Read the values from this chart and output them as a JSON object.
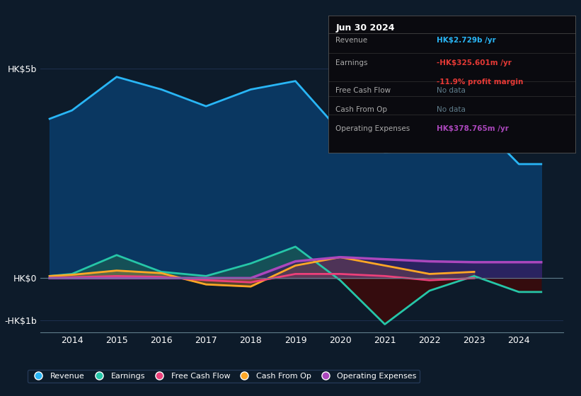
{
  "bg_color": "#0d1b2a",
  "plot_bg_color": "#0d1b2a",
  "grid_color": "#1e3050",
  "years": [
    2013.5,
    2014,
    2015,
    2016,
    2017,
    2018,
    2019,
    2020,
    2021,
    2022,
    2023,
    2024,
    2024.5
  ],
  "revenue": [
    3.8,
    4.0,
    4.8,
    4.5,
    4.1,
    4.5,
    4.7,
    3.5,
    3.0,
    3.1,
    3.8,
    2.72,
    2.72
  ],
  "earnings": [
    0.05,
    0.1,
    0.55,
    0.15,
    0.05,
    0.35,
    0.75,
    -0.05,
    -1.1,
    -0.3,
    0.05,
    -0.33,
    -0.33
  ],
  "free_cash_flow": [
    0.0,
    0.02,
    0.05,
    0.03,
    -0.05,
    -0.1,
    0.1,
    0.1,
    0.05,
    -0.05,
    0.0,
    null,
    null
  ],
  "cash_from_op": [
    0.05,
    0.08,
    0.18,
    0.12,
    -0.15,
    -0.2,
    0.3,
    0.5,
    0.3,
    0.1,
    0.15,
    null,
    null
  ],
  "operating_expenses": [
    0.0,
    0.0,
    0.0,
    0.0,
    0.0,
    0.0,
    0.4,
    0.5,
    0.45,
    0.4,
    0.38,
    0.38,
    0.38
  ],
  "revenue_color": "#29b6f6",
  "earnings_color": "#26c6a8",
  "free_cash_flow_color": "#ec407a",
  "cash_from_op_color": "#ffa726",
  "operating_expenses_color": "#ab47bc",
  "info_box": {
    "date": "Jun 30 2024",
    "revenue_val": "HK$2.729b",
    "revenue_color": "#29b6f6",
    "earnings_val": "-HK$325.601m",
    "earnings_color": "#e53935",
    "profit_margin": "-11.9%",
    "profit_margin_color": "#e53935",
    "op_expenses_val": "HK$378.765m",
    "op_expenses_color": "#ab47bc"
  },
  "xlim": [
    2013.3,
    2025.0
  ],
  "ylim": [
    -1.3,
    5.5
  ],
  "xticks": [
    2014,
    2015,
    2016,
    2017,
    2018,
    2019,
    2020,
    2021,
    2022,
    2023,
    2024
  ],
  "ytick_vals": [
    -1,
    0,
    5
  ],
  "ytick_labels": [
    "-HK$1b",
    "HK$0",
    "HK$5b"
  ]
}
